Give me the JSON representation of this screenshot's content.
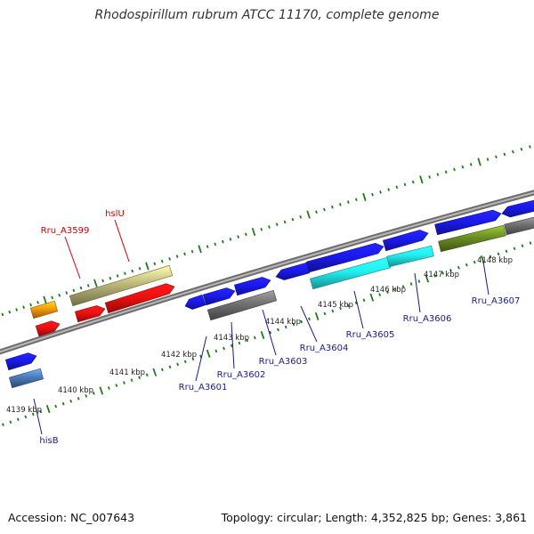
{
  "title": "Rhodospirillum rubrum ATCC 11170, complete genome",
  "accession": "Accession: NC_007643",
  "topology": "Topology: circular; Length: 4,352,825 bp; Genes: 3,861",
  "colors": {
    "tick": "#1f7a1f",
    "backbone": "#8c8c8c",
    "blue": "#1a1aee",
    "red": "#ee1111",
    "khaki": "#bdb87a",
    "orange": "#f59a0c",
    "cyan": "#22eeee",
    "olive": "#6b8e23",
    "gray": "#707070",
    "steelblue": "#4a7ab8",
    "label_top": "#cc0000",
    "label_bottom": "#1a1a8c"
  },
  "kbp_labels": [
    "4139 kbp",
    "4140 kbp",
    "4141 kbp",
    "4142 kbp",
    "4143 kbp",
    "4144 kbp",
    "4145 kbp",
    "4146 kbp",
    "4147 kbp",
    "4148 kbp"
  ],
  "genes_top": [
    {
      "label": "Rru_A3599",
      "color": "red",
      "pointer": "orange"
    },
    {
      "label": "hslU",
      "color": "red",
      "pointer": "khaki"
    }
  ],
  "genes_bottom": [
    {
      "label": "hisB"
    },
    {
      "label": "Rru_A3601"
    },
    {
      "label": "Rru_A3602"
    },
    {
      "label": "Rru_A3603"
    },
    {
      "label": "Rru_A3604"
    },
    {
      "label": "Rru_A3605"
    },
    {
      "label": "Rru_A3606"
    },
    {
      "label": "Rru_A3607"
    }
  ]
}
